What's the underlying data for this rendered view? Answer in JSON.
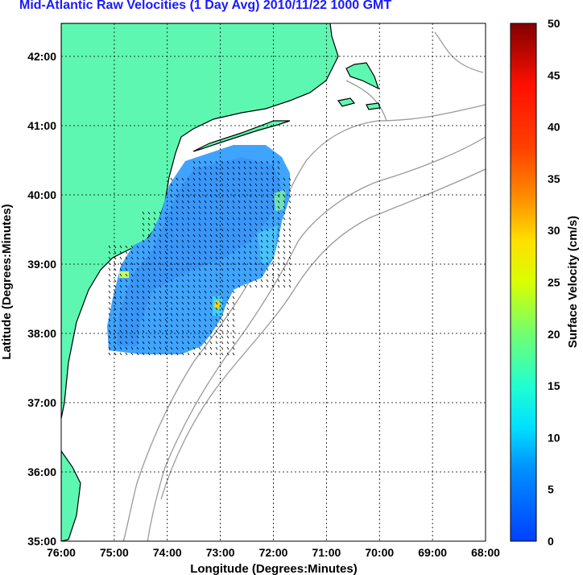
{
  "title": "Mid-Atlantic Raw Velocities (1 Day Avg) 2010/11/22 1000 GMT",
  "xlabel": "Longitude (Degrees:Minutes)",
  "ylabel": "Latitude (Degrees:Minutes)",
  "colorbar": {
    "label": "Surface Velocity (cm/s)",
    "min": 0,
    "max": 50,
    "ticks": [
      "0",
      "5",
      "10",
      "15",
      "20",
      "25",
      "30",
      "35",
      "40",
      "45",
      "50"
    ]
  },
  "x_ticks": [
    "76:00",
    "75:00",
    "74:00",
    "73:00",
    "72:00",
    "71:00",
    "70:00",
    "69:00",
    "68:00"
  ],
  "y_ticks": [
    "35:00",
    "36:00",
    "37:00",
    "38:00",
    "39:00",
    "40:00",
    "41:00",
    "42:00"
  ],
  "colors": {
    "land": "#5ef7b2",
    "coast_outline": "#000000",
    "bathymetry": "#999999",
    "grid": "#000000",
    "title": "#1a1aff"
  }
}
